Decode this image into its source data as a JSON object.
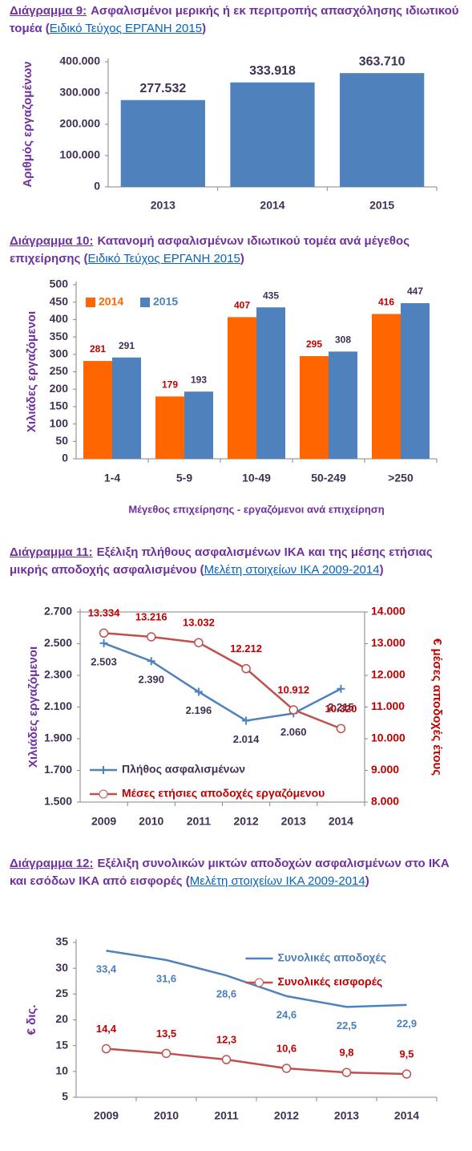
{
  "chart_data": [
    {
      "type": "bar",
      "title_label": "Διάγραμμα 9:",
      "title": "Ασφαλισμένοι μερικής ή εκ περιτροπής απασχόλησης ιδιωτικού τομέα",
      "source_open": "(",
      "source": "Ειδικό Τεύχος ΕΡΓΑΝΗ 2015",
      "source_close": ")",
      "ylabel": "Αριθμός εργαζομένων",
      "categories": [
        "2013",
        "2014",
        "2015"
      ],
      "values": [
        277532,
        333918,
        363710
      ],
      "value_labels": [
        "277.532",
        "333.918",
        "363.710"
      ],
      "color": "#4f81bd",
      "label_color": "#403152",
      "ylim": [
        0,
        400000
      ],
      "yticks": [
        0,
        {
          "value": 100000,
          "label": "100.000"
        },
        {
          "value": 200000,
          "label": "200.000"
        },
        {
          "value": 300000,
          "label": "300.000"
        },
        {
          "value": 400000,
          "label": "400.000"
        }
      ]
    },
    {
      "type": "bar",
      "title_label": "Διάγραμμα 10:",
      "title": "Κατανομή ασφαλισμένων ιδιωτικού τομέα ανά μέγεθος επιχείρησης",
      "source_open": "(",
      "source": "Ειδικό Τεύχος ΕΡΓΑΝΗ 2015",
      "source_close": ")",
      "ylabel": "Χιλιάδες εργαζόμενοι",
      "xlabel": "Μέγεθος επιχείρησης   - εργαζόμενοι ανά επιχείρηση",
      "categories": [
        "1-4",
        "5-9",
        "10-49",
        "50-249",
        ">250"
      ],
      "series": [
        {
          "name": "2014",
          "color": "#ff6600",
          "label_color": "#c00000",
          "values": [
            281,
            179,
            407,
            295,
            416
          ]
        },
        {
          "name": "2015",
          "color": "#4f81bd",
          "label_color": "#403152",
          "values": [
            291,
            193,
            435,
            308,
            447
          ]
        }
      ],
      "legend": "upper left",
      "ylim": [
        0,
        500
      ],
      "yticks": [
        0,
        50,
        100,
        150,
        200,
        250,
        300,
        350,
        400,
        450,
        500
      ]
    },
    {
      "type": "line",
      "title_label": "Διάγραμμα 11:",
      "title": "Εξέλιξη πλήθους ασφαλισμένων ΙΚΑ και της μέσης ετήσιας μικρής αποδοχής ασφαλισμένου",
      "source_open": "(",
      "source": "Μελέτη στοιχείων ΙΚΑ 2009-2014",
      "source_close": ")",
      "ylabel": "Χιλιάδες εργαζόμενοι",
      "y2label": "€ μέσες αποδοχές έτους",
      "y2_color": "#c00000",
      "categories": [
        "2009",
        "2010",
        "2011",
        "2012",
        "2013",
        "2014"
      ],
      "series": [
        {
          "name": "Πλήθος ασφαλισμένων",
          "color": "#4f81bd",
          "marker": "plus",
          "label_color": "#403152",
          "label_position": "below",
          "values": [
            2503,
            2390,
            2196,
            2014,
            2060,
            2215
          ],
          "value_labels": [
            "2.503",
            "2.390",
            "2.196",
            "2.014",
            "2.060",
            "2.215"
          ]
        },
        {
          "name": "Μέσες ετήσιες αποδοχές εργαζόμενου",
          "color": "#c0504d",
          "marker": "circle",
          "label_color": "#c00000",
          "label_position": "above",
          "axis": "y2",
          "values": [
            13334,
            13216,
            13032,
            12212,
            10912,
            10320
          ],
          "value_labels": [
            "13.334",
            "13.216",
            "13.032",
            "12.212",
            "10.912",
            "10.320"
          ]
        }
      ],
      "legend": "lower left",
      "ylim": [
        1500,
        2700
      ],
      "yticks": [
        {
          "value": 1500,
          "label": "1.500"
        },
        {
          "value": 1700,
          "label": "1.700"
        },
        {
          "value": 1900,
          "label": "1.900"
        },
        {
          "value": 2100,
          "label": "2.100"
        },
        {
          "value": 2300,
          "label": "2.300"
        },
        {
          "value": 2500,
          "label": "2.500"
        },
        {
          "value": 2700,
          "label": "2.700"
        }
      ],
      "y2lim": [
        8000,
        14000
      ],
      "y2ticks": [
        {
          "value": 8000,
          "label": "8.000"
        },
        {
          "value": 9000,
          "label": "9.000"
        },
        {
          "value": 10000,
          "label": "10.000"
        },
        {
          "value": 11000,
          "label": "11.000"
        },
        {
          "value": 12000,
          "label": "12.000"
        },
        {
          "value": 13000,
          "label": "13.000"
        },
        {
          "value": 14000,
          "label": "14.000"
        }
      ]
    },
    {
      "type": "line",
      "title_label": "Διάγραμμα 12:",
      "title": "Εξέλιξη συνολικών μικτών αποδοχών ασφαλισμένων στο ΙΚΑ και εσόδων ΙΚΑ από εισφορές",
      "source_open": "(",
      "source": "Μελέτη στοιχείων ΙΚΑ 2009-2014",
      "source_close": ")",
      "ylabel": "€ δις.",
      "categories": [
        "2009",
        "2010",
        "2011",
        "2012",
        "2013",
        "2014"
      ],
      "series": [
        {
          "name": "Συνολικές αποδοχές",
          "color": "#4f81bd",
          "label_color": "#4a7ebb",
          "label_position": "below",
          "values": [
            33.4,
            31.6,
            28.6,
            24.6,
            22.5,
            22.9
          ],
          "value_labels": [
            "33,4",
            "31,6",
            "28,6",
            "24,6",
            "22,5",
            "22,9"
          ]
        },
        {
          "name": "Συνολικές εισφορές",
          "color": "#c0504d",
          "marker": "circle",
          "label_color": "#c00000",
          "label_position": "above",
          "values": [
            14.4,
            13.5,
            12.3,
            10.6,
            9.8,
            9.5
          ],
          "value_labels": [
            "14,4",
            "13,5",
            "12,3",
            "10,6",
            "9,8",
            "9,5"
          ]
        }
      ],
      "legend": "upper right",
      "ylim": [
        5,
        35
      ],
      "yticks": [
        5,
        10,
        15,
        20,
        25,
        30,
        35
      ]
    }
  ]
}
